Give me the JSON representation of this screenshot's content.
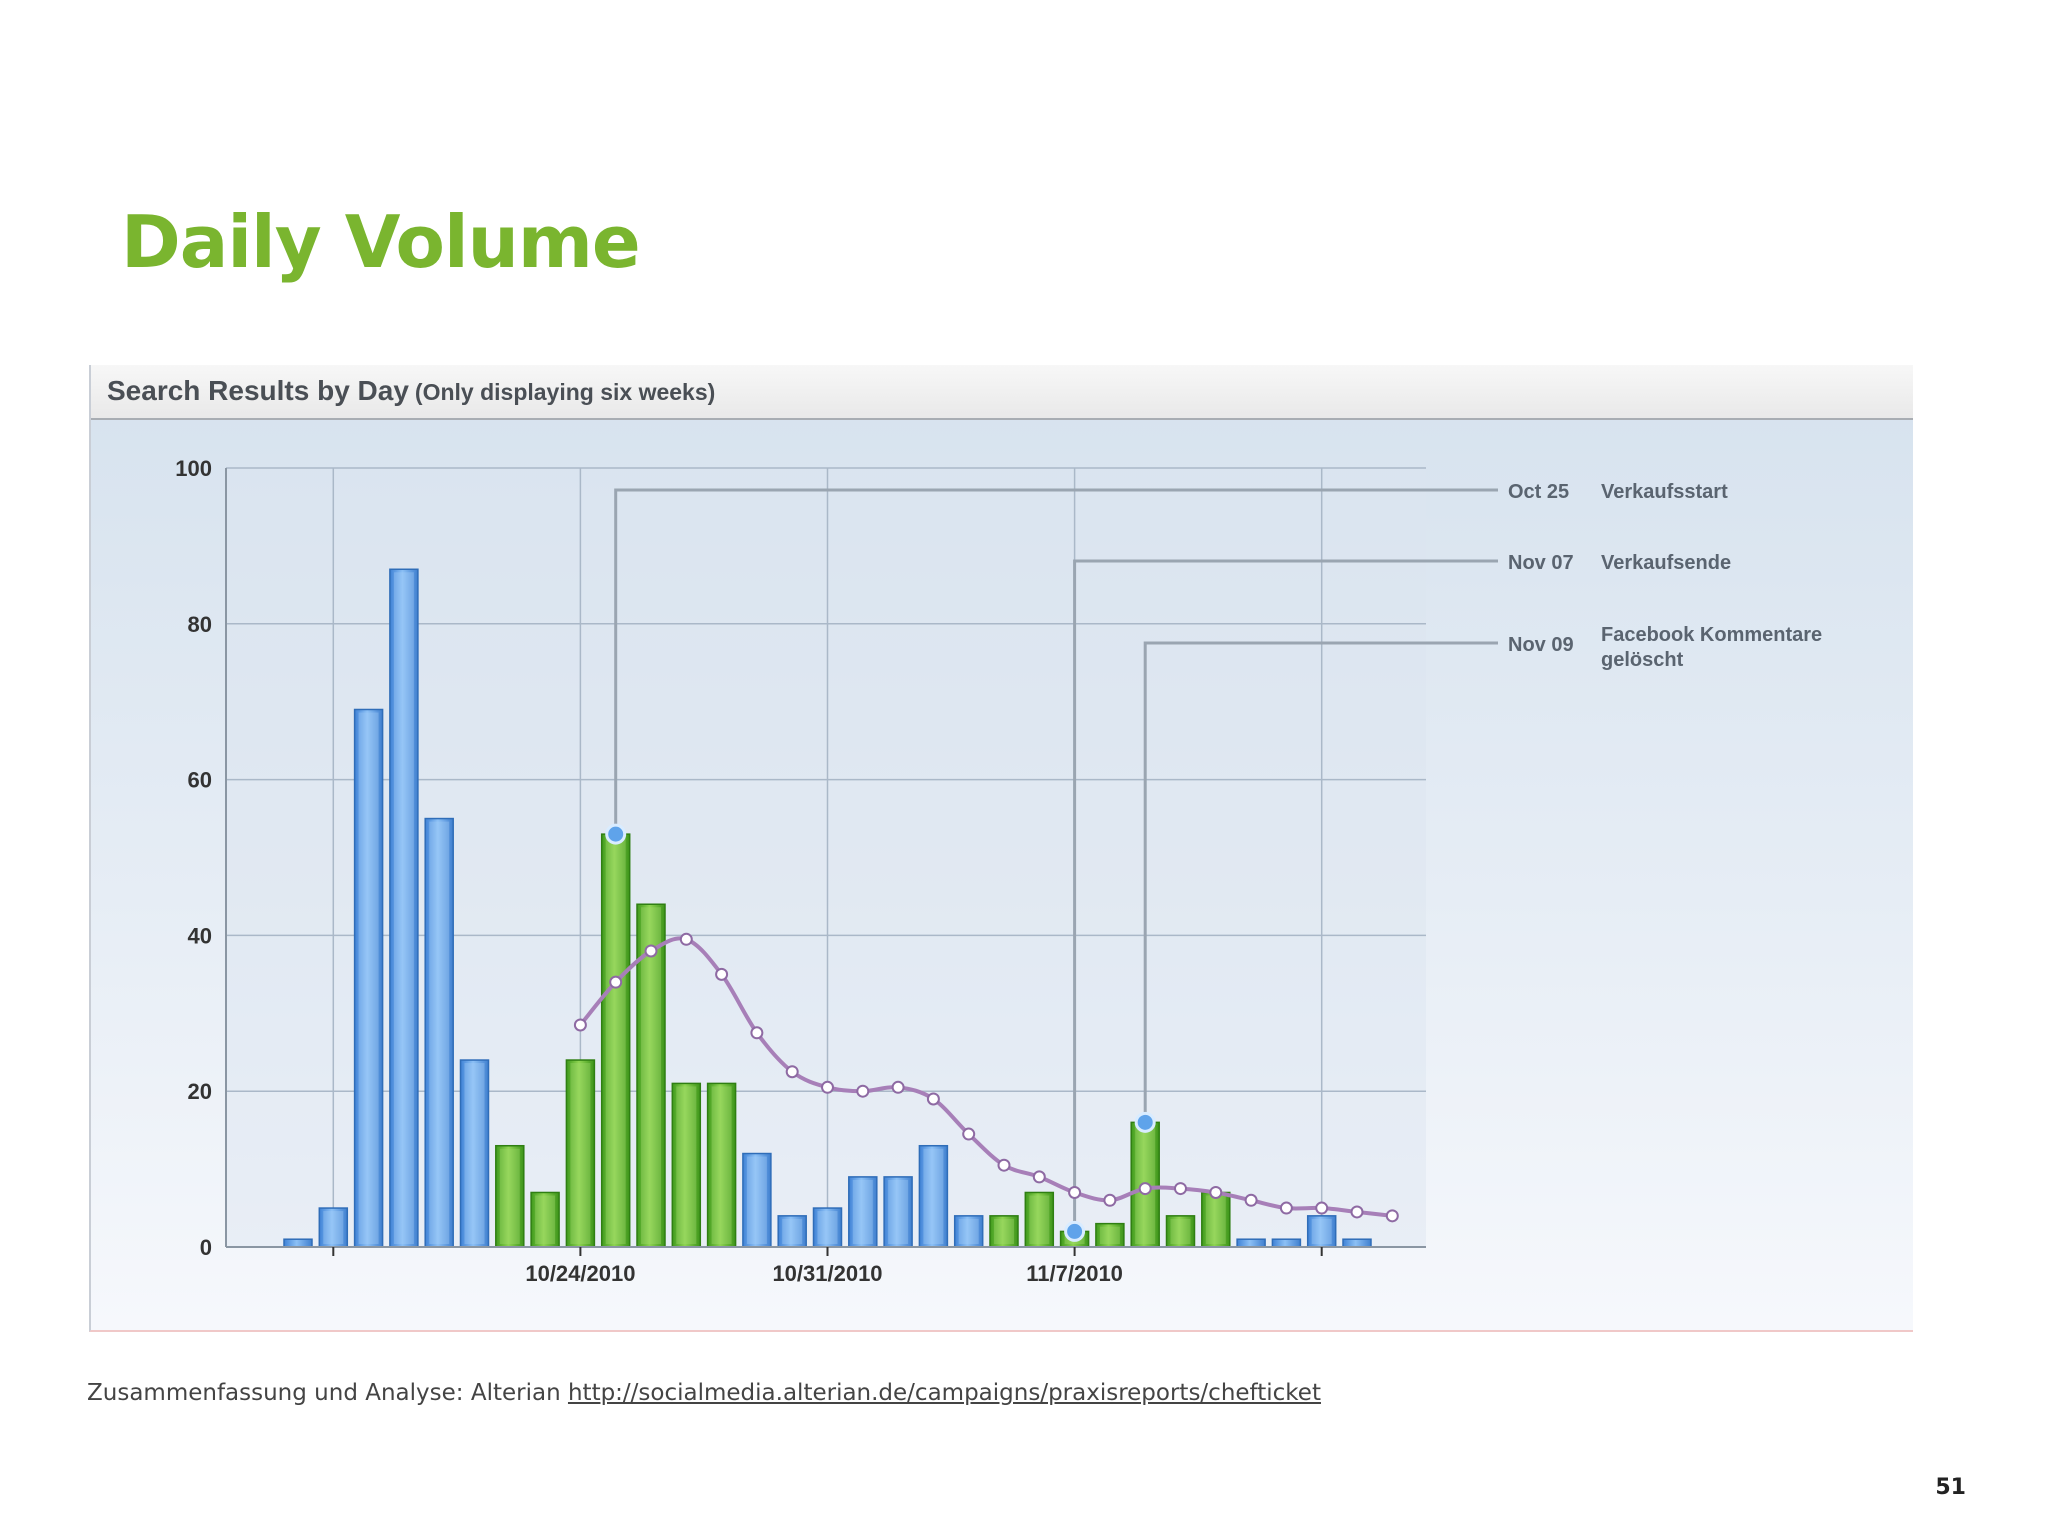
{
  "slide": {
    "title": "Daily Volume",
    "footer_prefix": "Zusammenfassung und Analyse: Alterian ",
    "footer_link": "http://socialmedia.alterian.de/campaigns/praxisreports/chefticket",
    "page_number": "51"
  },
  "chart_data": {
    "type": "bar",
    "title": "Search Results by Day",
    "subtitle": "(Only displaying six weeks)",
    "xlabel": "",
    "ylabel": "",
    "ylim": [
      0,
      100
    ],
    "y_ticks": [
      0,
      20,
      40,
      60,
      80,
      100
    ],
    "grid": true,
    "x_tick_labels": [
      {
        "day": 8,
        "label": "10/24/2010"
      },
      {
        "day": 15,
        "label": "10/31/2010"
      },
      {
        "day": 22,
        "label": "11/7/2010"
      }
    ],
    "x_major_gridlines_days": [
      1,
      8,
      15,
      22,
      29
    ],
    "bars": [
      {
        "day": 0,
        "value": 1,
        "color": "blue"
      },
      {
        "day": 1,
        "value": 5,
        "color": "blue"
      },
      {
        "day": 2,
        "value": 69,
        "color": "blue"
      },
      {
        "day": 3,
        "value": 87,
        "color": "blue"
      },
      {
        "day": 4,
        "value": 55,
        "color": "blue"
      },
      {
        "day": 5,
        "value": 24,
        "color": "blue"
      },
      {
        "day": 6,
        "value": 13,
        "color": "green"
      },
      {
        "day": 7,
        "value": 7,
        "color": "green"
      },
      {
        "day": 8,
        "value": 24,
        "color": "green"
      },
      {
        "day": 9,
        "value": 53,
        "color": "green"
      },
      {
        "day": 10,
        "value": 44,
        "color": "green"
      },
      {
        "day": 11,
        "value": 21,
        "color": "green"
      },
      {
        "day": 12,
        "value": 21,
        "color": "green"
      },
      {
        "day": 13,
        "value": 12,
        "color": "blue"
      },
      {
        "day": 14,
        "value": 4,
        "color": "blue"
      },
      {
        "day": 15,
        "value": 5,
        "color": "blue"
      },
      {
        "day": 16,
        "value": 9,
        "color": "blue"
      },
      {
        "day": 17,
        "value": 9,
        "color": "blue"
      },
      {
        "day": 18,
        "value": 13,
        "color": "blue"
      },
      {
        "day": 19,
        "value": 4,
        "color": "blue"
      },
      {
        "day": 20,
        "value": 4,
        "color": "green"
      },
      {
        "day": 21,
        "value": 7,
        "color": "green"
      },
      {
        "day": 22,
        "value": 2,
        "color": "green"
      },
      {
        "day": 23,
        "value": 3,
        "color": "green"
      },
      {
        "day": 24,
        "value": 16,
        "color": "green"
      },
      {
        "day": 25,
        "value": 4,
        "color": "green"
      },
      {
        "day": 26,
        "value": 7,
        "color": "green"
      },
      {
        "day": 27,
        "value": 1,
        "color": "blue"
      },
      {
        "day": 28,
        "value": 1,
        "color": "blue"
      },
      {
        "day": 29,
        "value": 4,
        "color": "blue"
      },
      {
        "day": 30,
        "value": 1,
        "color": "blue"
      }
    ],
    "trend_line": [
      {
        "day": 8,
        "value": 28.5
      },
      {
        "day": 9,
        "value": 34
      },
      {
        "day": 10,
        "value": 38
      },
      {
        "day": 11,
        "value": 39.5
      },
      {
        "day": 12,
        "value": 35
      },
      {
        "day": 13,
        "value": 27.5
      },
      {
        "day": 14,
        "value": 22.5
      },
      {
        "day": 15,
        "value": 20.5
      },
      {
        "day": 16,
        "value": 20
      },
      {
        "day": 17,
        "value": 20.5
      },
      {
        "day": 18,
        "value": 19
      },
      {
        "day": 19,
        "value": 14.5
      },
      {
        "day": 20,
        "value": 10.5
      },
      {
        "day": 21,
        "value": 9
      },
      {
        "day": 22,
        "value": 7
      },
      {
        "day": 23,
        "value": 6
      },
      {
        "day": 24,
        "value": 7.5
      },
      {
        "day": 25,
        "value": 7.5
      },
      {
        "day": 26,
        "value": 7
      },
      {
        "day": 27,
        "value": 6
      },
      {
        "day": 28,
        "value": 5
      },
      {
        "day": 29,
        "value": 5
      },
      {
        "day": 30,
        "value": 4.5
      },
      {
        "day": 31,
        "value": 4
      }
    ],
    "annotations": [
      {
        "day": 9,
        "value": 53,
        "date": "Oct 25",
        "text": [
          "Verkaufsstart"
        ]
      },
      {
        "day": 22,
        "value": 2,
        "date": "Nov 07",
        "text": [
          "Verkaufsende"
        ]
      },
      {
        "day": 24,
        "value": 16,
        "date": "Nov 09",
        "text": [
          "Facebook Kommentare",
          "gelöscht"
        ]
      }
    ],
    "colors": {
      "blue_bar": "#5b9ee8",
      "green_bar": "#62b32e",
      "trend_line": "#a77fb8",
      "grid": "#aab8c8",
      "annotation_line": "#9aa5b1"
    }
  }
}
